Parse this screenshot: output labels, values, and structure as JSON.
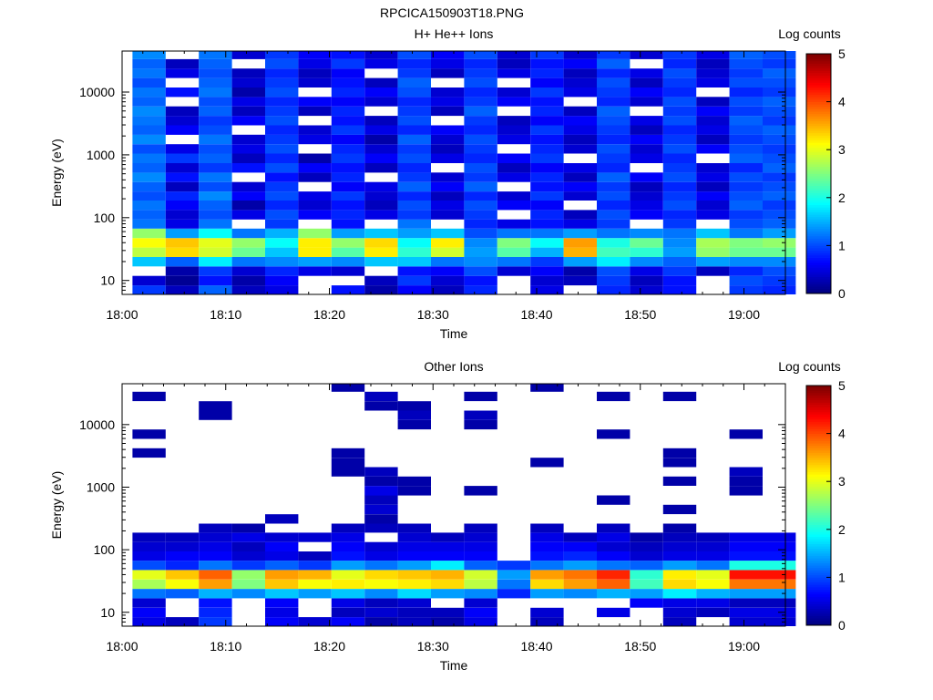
{
  "figure_title": "RPCICA150903T18.PNG",
  "chart_data": [
    {
      "type": "heatmap",
      "title": "H+ He++ Ions",
      "xlabel": "Time",
      "ylabel": "Energy (eV)",
      "colorbar_label": "Log counts",
      "x_ticks": [
        "18:00",
        "18:10",
        "18:20",
        "18:30",
        "18:40",
        "18:50",
        "19:00"
      ],
      "y_ticks": [
        "10",
        "100",
        "1000",
        "10000"
      ],
      "y_scale": "log",
      "ylim": [
        6,
        45000
      ],
      "xlim_minutes": [
        0,
        64
      ],
      "time_bins_minutes": [
        1,
        4.2,
        7.4,
        10.6,
        13.8,
        17,
        20.2,
        23.4,
        26.6,
        29.8,
        33,
        36.2,
        39.4,
        42.6,
        45.8,
        49,
        52.2,
        55.4,
        58.6,
        61.8
      ],
      "energy_bins_eV": [
        7,
        10,
        14,
        20,
        28,
        40,
        56,
        80,
        110,
        160,
        220,
        310,
        440,
        620,
        880,
        1250,
        1750,
        2500,
        3500,
        5000,
        7000,
        10000,
        14000,
        20000,
        28000,
        40000
      ],
      "log_counts_matrix_columns_by_time": [
        [
          0.9,
          0.4,
          -1,
          1.6,
          2.8,
          3.1,
          2.6,
          1.2,
          1.1,
          1.2,
          1.0,
          1.1,
          1.3,
          1.1,
          1.2,
          1.0,
          1.3,
          1.1,
          1.2,
          1.3,
          1.1,
          1.2,
          1.0,
          1.2,
          1.1,
          1.3
        ],
        [
          0.3,
          0.1,
          0.2,
          1.1,
          3.3,
          3.4,
          1.4,
          0.5,
          0.4,
          0.6,
          0.8,
          0.3,
          0.7,
          0.4,
          0.9,
          0.5,
          -1,
          0.6,
          0.4,
          0.3,
          -1,
          0.7,
          -1,
          0.5,
          0.3,
          -1
        ],
        [
          1.1,
          0.7,
          0.9,
          1.8,
          2.9,
          3.0,
          1.9,
          1.2,
          1.0,
          1.1,
          1.3,
          1.0,
          1.2,
          0.9,
          1.1,
          1.0,
          1.2,
          1.0,
          0.9,
          1.1,
          1.0,
          1.2,
          1.1,
          1.0,
          1.1,
          1.2
        ],
        [
          0.3,
          0.2,
          0.4,
          1.2,
          2.4,
          2.6,
          1.2,
          -1,
          0.5,
          0.2,
          0.6,
          0.4,
          -1,
          0.7,
          0.3,
          0.5,
          0.4,
          -1,
          0.6,
          0.3,
          0.5,
          0.2,
          0.4,
          0.3,
          -1,
          0.4
        ],
        [
          0.5,
          0.6,
          0.8,
          1.3,
          1.6,
          1.9,
          1.5,
          0.9,
          1.0,
          0.8,
          1.0,
          0.9,
          0.7,
          1.0,
          0.8,
          1.0,
          0.9,
          0.8,
          1.0,
          0.9,
          0.8,
          1.0,
          0.9,
          0.8,
          1.0,
          0.9
        ],
        [
          -1,
          -1,
          0.5,
          1.4,
          3.2,
          3.2,
          2.6,
          -1,
          0.6,
          0.4,
          0.5,
          -1,
          0.3,
          0.6,
          0.2,
          -1,
          0.5,
          0.4,
          -1,
          0.3,
          0.6,
          -1,
          0.4,
          0.3,
          0.5,
          0.6
        ],
        [
          0.7,
          -1,
          0.4,
          1.3,
          2.3,
          2.6,
          1.4,
          0.7,
          0.8,
          0.7,
          0.9,
          0.6,
          0.8,
          0.7,
          0.9,
          0.8,
          0.6,
          0.9,
          0.7,
          0.8,
          0.6,
          0.8,
          0.7,
          0.6,
          0.9,
          0.7
        ],
        [
          0.2,
          0.3,
          -1,
          1.6,
          3.2,
          3.3,
          1.6,
          -1,
          0.5,
          0.3,
          0.4,
          0.5,
          -1,
          0.3,
          0.6,
          0.4,
          0.2,
          0.5,
          0.3,
          -1,
          0.4,
          0.6,
          0.3,
          -1,
          0.5,
          0.4
        ],
        [
          0.6,
          0.9,
          0.7,
          1.6,
          2.1,
          1.9,
          1.4,
          1.2,
          0.9,
          1.0,
          0.8,
          1.1,
          0.9,
          0.8,
          1.0,
          0.9,
          1.1,
          0.8,
          1.0,
          0.9,
          0.8,
          1.0,
          1.1,
          0.9,
          0.8,
          1.0
        ],
        [
          0.3,
          0.4,
          0.6,
          1.2,
          2.9,
          3.2,
          1.6,
          -1,
          0.4,
          0.5,
          0.3,
          0.6,
          0.4,
          -1,
          0.5,
          0.3,
          0.4,
          0.6,
          -1,
          0.3,
          0.5,
          0.4,
          -1,
          0.3,
          0.5,
          0.6
        ],
        [
          0.8,
          0.7,
          1.0,
          1.3,
          1.4,
          1.3,
          1.0,
          0.8,
          0.9,
          1.0,
          0.8,
          1.1,
          0.9,
          1.0,
          0.8,
          0.9,
          1.0,
          0.8,
          0.9,
          1.1,
          0.9,
          0.8,
          1.0,
          0.9,
          0.8,
          1.0
        ],
        [
          -1,
          -1,
          0.4,
          1.2,
          2.3,
          2.5,
          1.2,
          0.5,
          -1,
          0.6,
          0.4,
          -1,
          0.5,
          0.3,
          0.6,
          -1,
          0.5,
          0.4,
          0.3,
          -1,
          0.6,
          0.4,
          -1,
          0.5,
          0.3,
          0.4
        ],
        [
          0.5,
          0.4,
          0.6,
          0.9,
          1.5,
          1.9,
          1.2,
          0.7,
          0.8,
          0.6,
          0.9,
          0.7,
          0.8,
          0.6,
          0.9,
          0.8,
          0.7,
          0.9,
          0.6,
          0.8,
          0.7,
          0.9,
          0.6,
          0.8,
          0.7,
          0.9
        ],
        [
          -1,
          0.3,
          0.2,
          1.4,
          3.5,
          3.6,
          1.4,
          0.5,
          0.3,
          -1,
          0.4,
          0.6,
          0.3,
          0.5,
          -1,
          0.4,
          0.3,
          0.5,
          0.6,
          0.3,
          -1,
          0.5,
          0.4,
          0.3,
          0.6,
          0.4
        ],
        [
          0.8,
          0.9,
          1.0,
          1.8,
          2.2,
          2.0,
          1.2,
          0.9,
          1.0,
          0.8,
          1.0,
          0.9,
          1.1,
          0.8,
          0.9,
          1.0,
          0.8,
          0.9,
          1.0,
          1.1,
          0.8,
          0.9,
          1.0,
          0.8,
          1.1,
          0.9
        ],
        [
          0.4,
          0.3,
          0.5,
          1.3,
          2.1,
          2.4,
          1.3,
          -1,
          0.6,
          0.5,
          0.4,
          0.3,
          0.6,
          -1,
          0.5,
          0.4,
          0.6,
          0.3,
          0.5,
          -1,
          0.4,
          0.6,
          0.3,
          0.5,
          -1,
          0.4
        ],
        [
          0.7,
          0.7,
          0.9,
          1.1,
          1.4,
          1.3,
          1.2,
          0.9,
          0.8,
          1.0,
          0.9,
          0.8,
          1.0,
          0.9,
          0.8,
          1.0,
          0.9,
          0.8,
          1.0,
          0.9,
          1.0,
          0.8,
          0.9,
          1.0,
          0.8,
          0.9
        ],
        [
          -1,
          -1,
          0.3,
          1.4,
          2.6,
          2.7,
          1.6,
          -1,
          0.5,
          0.4,
          0.6,
          0.3,
          0.5,
          0.4,
          -1,
          0.6,
          0.3,
          0.5,
          0.4,
          0.6,
          0.3,
          -1,
          0.5,
          0.4,
          0.3,
          0.5
        ],
        [
          0.9,
          1.0,
          0.8,
          1.3,
          2.4,
          2.5,
          1.2,
          1.0,
          0.9,
          1.1,
          1.0,
          0.9,
          1.0,
          0.8,
          1.1,
          1.0,
          0.9,
          1.0,
          1.1,
          0.9,
          1.0,
          0.8,
          1.0,
          0.9,
          1.0,
          1.1
        ],
        [
          0.8,
          0.9,
          1.0,
          1.3,
          2.4,
          2.6,
          1.4,
          1.1,
          1.0,
          0.9,
          1.1,
          1.0,
          0.9,
          1.1,
          1.0,
          0.9,
          1.0,
          1.1,
          0.9,
          1.0,
          1.1,
          0.9,
          1.0,
          1.1,
          0.9,
          1.0
        ]
      ],
      "colorbar_ticks": [
        "0",
        "1",
        "2",
        "3",
        "4",
        "5"
      ]
    },
    {
      "type": "heatmap",
      "title": "Other Ions",
      "xlabel": "Time",
      "ylabel": "Energy (eV)",
      "colorbar_label": "Log counts",
      "x_ticks": [
        "18:00",
        "18:10",
        "18:20",
        "18:30",
        "18:40",
        "18:50",
        "19:00"
      ],
      "y_ticks": [
        "10",
        "100",
        "1000",
        "10000"
      ],
      "y_scale": "log",
      "ylim": [
        6,
        45000
      ],
      "xlim_minutes": [
        0,
        64
      ],
      "time_bins_minutes": [
        1,
        4.2,
        7.4,
        10.6,
        13.8,
        17,
        20.2,
        23.4,
        26.6,
        29.8,
        33,
        36.2,
        39.4,
        42.6,
        45.8,
        49,
        52.2,
        55.4,
        58.6,
        61.8
      ],
      "energy_bins_eV": [
        7,
        10,
        14,
        20,
        28,
        40,
        56,
        80,
        110,
        160,
        220,
        310,
        440,
        620,
        880,
        1250,
        1750,
        2500,
        3500,
        5000,
        7000,
        10000,
        14000,
        20000,
        28000,
        40000
      ],
      "log_counts_matrix_columns_by_time": [
        [
          0.5,
          0.6,
          0.4,
          1.2,
          2.7,
          3.0,
          1.0,
          0.5,
          0.4,
          0.3,
          -1,
          -1,
          -1,
          -1,
          -1,
          -1,
          -1,
          -1,
          0.2,
          -1,
          0.2,
          -1,
          -1,
          -1,
          0.2,
          -1
        ],
        [
          0.3,
          -1,
          -1,
          1.1,
          3.1,
          3.4,
          0.8,
          0.6,
          0.4,
          0.3,
          -1,
          -1,
          -1,
          -1,
          -1,
          -1,
          -1,
          -1,
          -1,
          -1,
          -1,
          -1,
          -1,
          -1,
          -1,
          -1
        ],
        [
          0.9,
          0.8,
          0.7,
          1.5,
          3.6,
          3.9,
          1.2,
          0.6,
          0.5,
          0.4,
          0.3,
          -1,
          -1,
          -1,
          -1,
          -1,
          -1,
          -1,
          -1,
          -1,
          -1,
          -1,
          0.2,
          0.2,
          -1,
          -1
        ],
        [
          -1,
          -1,
          -1,
          1.3,
          2.5,
          2.6,
          0.9,
          0.4,
          0.3,
          0.5,
          0.2,
          -1,
          -1,
          -1,
          -1,
          -1,
          -1,
          -1,
          -1,
          -1,
          -1,
          -1,
          -1,
          -1,
          -1,
          -1
        ],
        [
          0.6,
          0.5,
          0.6,
          1.6,
          3.4,
          3.6,
          1.1,
          0.5,
          0.6,
          0.4,
          -1,
          0.3,
          -1,
          -1,
          -1,
          -1,
          -1,
          -1,
          -1,
          -1,
          -1,
          -1,
          -1,
          -1,
          -1,
          -1
        ],
        [
          0.4,
          -1,
          -1,
          1.4,
          3.1,
          3.5,
          0.9,
          0.3,
          -1,
          0.4,
          -1,
          -1,
          -1,
          -1,
          -1,
          -1,
          -1,
          -1,
          -1,
          -1,
          -1,
          -1,
          -1,
          -1,
          -1,
          -1
        ],
        [
          0.6,
          0.3,
          0.5,
          1.6,
          3.2,
          3.0,
          1.4,
          0.7,
          0.6,
          0.5,
          0.3,
          -1,
          -1,
          -1,
          -1,
          -1,
          0.2,
          0.2,
          0.2,
          -1,
          -1,
          -1,
          -1,
          -1,
          -1,
          0.2
        ],
        [
          0.2,
          0.4,
          0.3,
          1.3,
          3.1,
          3.3,
          1.2,
          0.5,
          0.4,
          -1,
          0.3,
          0.2,
          0.4,
          0.3,
          0.5,
          0.2,
          0.3,
          -1,
          -1,
          -1,
          -1,
          -1,
          -1,
          0.2,
          0.3,
          -1
        ],
        [
          0.3,
          0.3,
          0.4,
          1.7,
          3.2,
          3.4,
          1.4,
          0.6,
          0.5,
          0.4,
          0.3,
          -1,
          -1,
          -1,
          0.2,
          0.2,
          -1,
          -1,
          -1,
          -1,
          -1,
          0.2,
          0.3,
          0.2,
          -1,
          -1
        ],
        [
          0.2,
          0.3,
          -1,
          1.4,
          3.3,
          3.5,
          1.8,
          0.6,
          0.5,
          0.3,
          -1,
          -1,
          -1,
          -1,
          -1,
          -1,
          -1,
          -1,
          -1,
          -1,
          -1,
          -1,
          -1,
          -1,
          -1,
          -1
        ],
        [
          0.5,
          0.6,
          0.4,
          1.3,
          2.8,
          2.9,
          1.1,
          0.6,
          0.5,
          0.4,
          0.3,
          -1,
          -1,
          -1,
          0.2,
          -1,
          -1,
          -1,
          -1,
          -1,
          -1,
          0.2,
          0.3,
          -1,
          0.2,
          -1
        ],
        [
          -1,
          -1,
          -1,
          0.8,
          1.2,
          1.4,
          0.9,
          -1,
          -1,
          -1,
          -1,
          -1,
          -1,
          -1,
          -1,
          -1,
          -1,
          -1,
          -1,
          -1,
          -1,
          -1,
          -1,
          -1,
          -1,
          -1
        ],
        [
          0.3,
          0.4,
          -1,
          1.4,
          3.3,
          3.6,
          1.2,
          0.7,
          0.6,
          0.5,
          0.3,
          -1,
          -1,
          -1,
          -1,
          -1,
          -1,
          0.2,
          -1,
          -1,
          -1,
          -1,
          -1,
          -1,
          -1,
          0.2
        ],
        [
          -1,
          -1,
          -1,
          1.3,
          3.6,
          3.8,
          1.4,
          0.8,
          0.6,
          0.3,
          -1,
          -1,
          -1,
          -1,
          -1,
          -1,
          -1,
          -1,
          -1,
          -1,
          -1,
          -1,
          -1,
          -1,
          -1,
          -1
        ],
        [
          -1,
          0.5,
          -1,
          1.5,
          3.9,
          4.2,
          1.2,
          0.6,
          0.4,
          0.5,
          0.3,
          -1,
          -1,
          0.2,
          -1,
          -1,
          -1,
          -1,
          -1,
          -1,
          0.2,
          -1,
          -1,
          -1,
          0.2,
          -1
        ],
        [
          -1,
          -1,
          0.6,
          1.4,
          2.2,
          2.1,
          1.1,
          0.4,
          0.3,
          0.2,
          -1,
          -1,
          -1,
          -1,
          -1,
          -1,
          -1,
          -1,
          -1,
          -1,
          -1,
          -1,
          -1,
          -1,
          -1,
          -1
        ],
        [
          0.3,
          0.4,
          0.5,
          1.8,
          3.3,
          3.2,
          1.4,
          0.5,
          0.4,
          0.3,
          0.2,
          -1,
          0.2,
          -1,
          -1,
          0.2,
          -1,
          0.2,
          0.2,
          -1,
          -1,
          -1,
          -1,
          -1,
          0.2,
          -1
        ],
        [
          -1,
          0.3,
          0.5,
          1.5,
          3.1,
          3.0,
          1.2,
          0.5,
          0.4,
          0.3,
          -1,
          -1,
          -1,
          -1,
          -1,
          -1,
          -1,
          -1,
          -1,
          -1,
          -1,
          -1,
          -1,
          -1,
          -1,
          -1
        ],
        [
          0.4,
          0.5,
          0.3,
          1.4,
          3.8,
          4.3,
          2.0,
          0.7,
          0.6,
          0.5,
          -1,
          -1,
          -1,
          -1,
          0.2,
          0.2,
          0.3,
          -1,
          -1,
          -1,
          0.2,
          -1,
          -1,
          -1,
          -1,
          -1
        ],
        [
          0.4,
          0.5,
          0.3,
          1.4,
          3.8,
          4.3,
          2.0,
          0.7,
          0.6,
          0.5,
          -1,
          -1,
          -1,
          -1,
          -1,
          -1,
          -1,
          -1,
          -1,
          -1,
          -1,
          -1,
          -1,
          -1,
          -1,
          -1
        ]
      ],
      "colorbar_ticks": [
        "0",
        "1",
        "2",
        "3",
        "4",
        "5"
      ]
    }
  ]
}
